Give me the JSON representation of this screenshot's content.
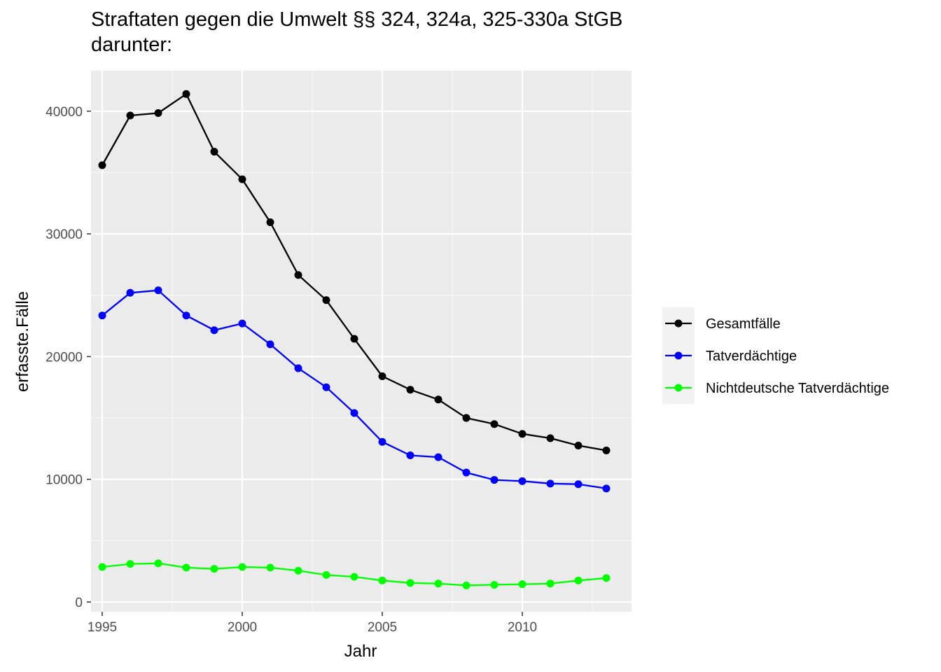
{
  "chart_data": {
    "type": "line",
    "title": "Straftaten gegen die Umwelt §§ 324, 324a, 325-330a StGB",
    "subtitle": "darunter:",
    "xlabel": "Jahr",
    "ylabel": "erfasste.Fälle",
    "xlim": [
      1994.6,
      2013.9
    ],
    "ylim": [
      -800,
      43300
    ],
    "x_ticks": [
      1995,
      2000,
      2005,
      2010
    ],
    "y_ticks": [
      0,
      10000,
      20000,
      30000,
      40000
    ],
    "grid": true,
    "legend_position": "right",
    "x": [
      1995,
      1996,
      1997,
      1998,
      1999,
      2000,
      2001,
      2002,
      2003,
      2004,
      2005,
      2006,
      2007,
      2008,
      2009,
      2010,
      2011,
      2012,
      2013
    ],
    "series": [
      {
        "name": "Gesamtfälle",
        "color": "#000000",
        "values": [
          35600,
          39650,
          39850,
          41400,
          36700,
          34450,
          30950,
          26650,
          24600,
          21450,
          18400,
          17300,
          16500,
          15000,
          14500,
          13700,
          13350,
          12750,
          12350
        ]
      },
      {
        "name": "Tatverdächtige",
        "color": "#0000ff",
        "values": [
          23350,
          25200,
          25400,
          23350,
          22150,
          22700,
          21000,
          19050,
          17500,
          15400,
          13050,
          11950,
          11800,
          10550,
          9950,
          9850,
          9650,
          9600,
          9250
        ]
      },
      {
        "name": "Nichtdeutsche Tatverdächtige",
        "color": "#00ff00",
        "values": [
          2850,
          3100,
          3150,
          2800,
          2700,
          2850,
          2800,
          2550,
          2200,
          2050,
          1750,
          1550,
          1500,
          1350,
          1400,
          1450,
          1500,
          1750,
          1950
        ]
      }
    ],
    "panel_background": "#ebebeb",
    "legend_key_background": "#f2f2f2"
  }
}
